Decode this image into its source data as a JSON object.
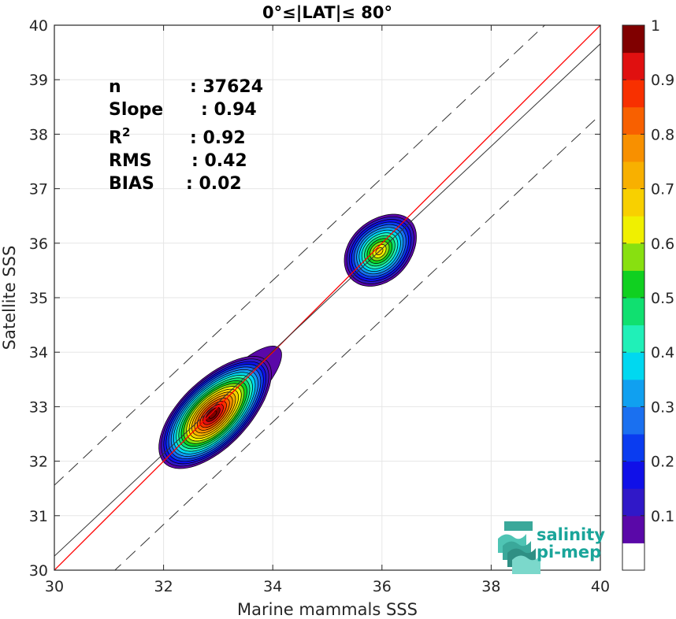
{
  "chart_data": {
    "type": "heatmap",
    "title": "0°≤|LAT|≤ 80°",
    "xlabel": "Marine mammals SSS",
    "ylabel": "Satellite SSS",
    "xlim": [
      30,
      40
    ],
    "ylim": [
      30,
      40
    ],
    "xticks": [
      30,
      32,
      34,
      36,
      38,
      40
    ],
    "yticks": [
      30,
      31,
      32,
      33,
      34,
      35,
      36,
      37,
      38,
      39,
      40
    ],
    "grid": true,
    "stats": [
      {
        "label": "n",
        "value": ": 37624"
      },
      {
        "label": "Slope",
        "value": ": 0.94"
      },
      {
        "label": "R2",
        "value": ": 0.92"
      },
      {
        "label": "RMS",
        "value": ": 0.42"
      },
      {
        "label": "BIAS",
        "value": ": 0.02"
      }
    ],
    "lines": {
      "identity": {
        "color": "#ff0000",
        "slope": 1,
        "intercept": 0
      },
      "regression": {
        "color": "#333333",
        "slope": 0.94,
        "intercept": 2.058
      },
      "bounds": {
        "color": "#333333",
        "offset": 1.3,
        "dashed": true
      }
    },
    "density_clusters": [
      {
        "center_x": 32.9,
        "center_y": 32.85,
        "peak": 1.0
      },
      {
        "center_x": 35.95,
        "center_y": 35.85,
        "peak": 0.65
      }
    ],
    "colorbar": {
      "ticks": [
        0.1,
        0.2,
        0.3,
        0.4,
        0.5,
        0.6,
        0.7,
        0.8,
        0.9,
        1
      ],
      "tick_labels": [
        "0.1",
        "0.2",
        "0.3",
        "0.4",
        "0.5",
        "0.6",
        "0.7",
        "0.8",
        "0.9",
        "1"
      ],
      "levels": [
        0.05,
        0.1,
        0.15,
        0.2,
        0.25,
        0.3,
        0.35,
        0.4,
        0.45,
        0.5,
        0.55,
        0.6,
        0.65,
        0.7,
        0.75,
        0.8,
        0.85,
        0.9,
        0.95,
        1.0
      ],
      "colors": [
        "#ffffff",
        "#5a08a8",
        "#3018c8",
        "#1010e8",
        "#0a3cf0",
        "#1a70f0",
        "#10a0f0",
        "#00d8f0",
        "#20f0b8",
        "#10e070",
        "#10d020",
        "#88e010",
        "#f0f000",
        "#f8d000",
        "#f8b000",
        "#f89000",
        "#f86000",
        "#f83000",
        "#e01010",
        "#800000"
      ]
    }
  },
  "logo": {
    "line1": "salinity",
    "line2": "pi-mep"
  }
}
